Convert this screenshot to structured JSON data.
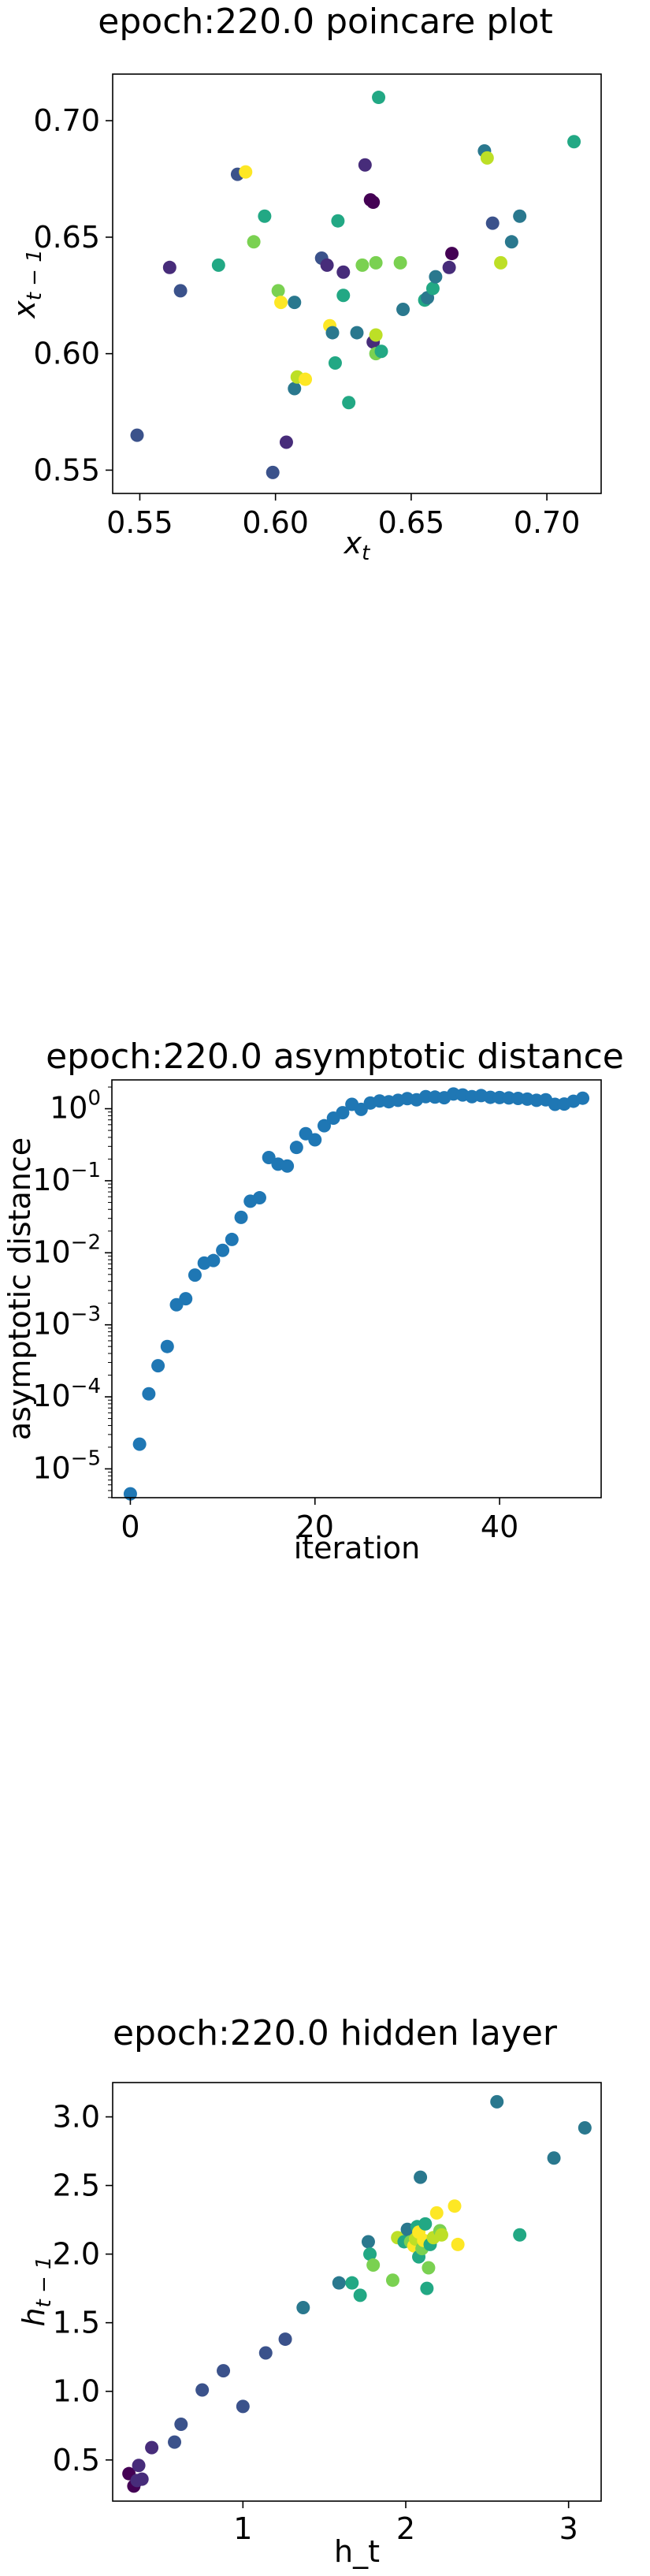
{
  "chart_data": [
    {
      "type": "scatter",
      "title": "epoch:220.0 poincare plot",
      "xlabel": "x_t",
      "ylabel": "x_{t-1}",
      "xlim": [
        0.54,
        0.72
      ],
      "ylim": [
        0.54,
        0.72
      ],
      "xticks": [
        "0.55",
        "0.60",
        "0.65",
        "0.70"
      ],
      "yticks": [
        "0.55",
        "0.60",
        "0.65",
        "0.70"
      ],
      "colormap": "viridis",
      "points": [
        {
          "x": 0.549,
          "y": 0.565,
          "c": "#3b528b"
        },
        {
          "x": 0.561,
          "y": 0.637,
          "c": "#472c7a"
        },
        {
          "x": 0.565,
          "y": 0.627,
          "c": "#3b528b"
        },
        {
          "x": 0.579,
          "y": 0.638,
          "c": "#22a884"
        },
        {
          "x": 0.586,
          "y": 0.677,
          "c": "#3b528b"
        },
        {
          "x": 0.589,
          "y": 0.678,
          "c": "#fde725"
        },
        {
          "x": 0.592,
          "y": 0.648,
          "c": "#7ad151"
        },
        {
          "x": 0.596,
          "y": 0.659,
          "c": "#22a884"
        },
        {
          "x": 0.599,
          "y": 0.549,
          "c": "#3b528b"
        },
        {
          "x": 0.601,
          "y": 0.627,
          "c": "#7ad151"
        },
        {
          "x": 0.602,
          "y": 0.622,
          "c": "#fde725"
        },
        {
          "x": 0.604,
          "y": 0.562,
          "c": "#472c7a"
        },
        {
          "x": 0.607,
          "y": 0.622,
          "c": "#2a788e"
        },
        {
          "x": 0.607,
          "y": 0.585,
          "c": "#2a788e"
        },
        {
          "x": 0.608,
          "y": 0.59,
          "c": "#bddf26"
        },
        {
          "x": 0.611,
          "y": 0.589,
          "c": "#fde725"
        },
        {
          "x": 0.617,
          "y": 0.641,
          "c": "#3b528b"
        },
        {
          "x": 0.619,
          "y": 0.638,
          "c": "#472c7a"
        },
        {
          "x": 0.62,
          "y": 0.612,
          "c": "#fde725"
        },
        {
          "x": 0.621,
          "y": 0.609,
          "c": "#2a788e"
        },
        {
          "x": 0.622,
          "y": 0.596,
          "c": "#22a884"
        },
        {
          "x": 0.623,
          "y": 0.657,
          "c": "#22a884"
        },
        {
          "x": 0.625,
          "y": 0.625,
          "c": "#22a884"
        },
        {
          "x": 0.625,
          "y": 0.635,
          "c": "#472c7a"
        },
        {
          "x": 0.627,
          "y": 0.579,
          "c": "#22a884"
        },
        {
          "x": 0.63,
          "y": 0.609,
          "c": "#2a788e"
        },
        {
          "x": 0.632,
          "y": 0.638,
          "c": "#7ad151"
        },
        {
          "x": 0.633,
          "y": 0.681,
          "c": "#472c7a"
        },
        {
          "x": 0.635,
          "y": 0.666,
          "c": "#440154"
        },
        {
          "x": 0.636,
          "y": 0.665,
          "c": "#440154"
        },
        {
          "x": 0.636,
          "y": 0.605,
          "c": "#472c7a"
        },
        {
          "x": 0.637,
          "y": 0.6,
          "c": "#7ad151"
        },
        {
          "x": 0.637,
          "y": 0.608,
          "c": "#bddf26"
        },
        {
          "x": 0.637,
          "y": 0.639,
          "c": "#7ad151"
        },
        {
          "x": 0.638,
          "y": 0.71,
          "c": "#22a884"
        },
        {
          "x": 0.639,
          "y": 0.601,
          "c": "#22a884"
        },
        {
          "x": 0.646,
          "y": 0.639,
          "c": "#7ad151"
        },
        {
          "x": 0.647,
          "y": 0.619,
          "c": "#2a788e"
        },
        {
          "x": 0.655,
          "y": 0.623,
          "c": "#22a884"
        },
        {
          "x": 0.656,
          "y": 0.624,
          "c": "#2a788e"
        },
        {
          "x": 0.658,
          "y": 0.628,
          "c": "#22a884"
        },
        {
          "x": 0.659,
          "y": 0.633,
          "c": "#2a788e"
        },
        {
          "x": 0.664,
          "y": 0.637,
          "c": "#472c7a"
        },
        {
          "x": 0.665,
          "y": 0.643,
          "c": "#440154"
        },
        {
          "x": 0.677,
          "y": 0.687,
          "c": "#2a788e"
        },
        {
          "x": 0.678,
          "y": 0.684,
          "c": "#bddf26"
        },
        {
          "x": 0.68,
          "y": 0.656,
          "c": "#3b528b"
        },
        {
          "x": 0.683,
          "y": 0.639,
          "c": "#bddf26"
        },
        {
          "x": 0.687,
          "y": 0.648,
          "c": "#2a788e"
        },
        {
          "x": 0.69,
          "y": 0.659,
          "c": "#2a788e"
        },
        {
          "x": 0.71,
          "y": 0.691,
          "c": "#22a884"
        }
      ]
    },
    {
      "type": "scatter",
      "title": "epoch:220.0 asymptotic distance",
      "xlabel": "iteration",
      "ylabel": "asymptotic distance",
      "xlim": [
        -2,
        51
      ],
      "ylim_log10": [
        -5.4,
        0.4
      ],
      "yscale": "log",
      "xticks": [
        "0",
        "20",
        "40"
      ],
      "ytick_bases": [
        "10",
        "10",
        "10",
        "10",
        "10",
        "10"
      ],
      "ytick_exps": [
        "0",
        "−1",
        "−2",
        "−3",
        "−4",
        "−5"
      ],
      "marker_color": "#1f77b4",
      "x": [
        0,
        1,
        2,
        3,
        4,
        5,
        6,
        7,
        8,
        9,
        10,
        11,
        12,
        13,
        14,
        15,
        16,
        17,
        18,
        19,
        20,
        21,
        22,
        23,
        24,
        25,
        26,
        27,
        28,
        29,
        30,
        31,
        32,
        33,
        34,
        35,
        36,
        37,
        38,
        39,
        40,
        41,
        42,
        43,
        44,
        45,
        46,
        47,
        48,
        49
      ],
      "y": [
        4.5e-06,
        2.2e-05,
        0.00011,
        0.00027,
        0.0005,
        0.0019,
        0.0023,
        0.0049,
        0.0072,
        0.0078,
        0.0108,
        0.0153,
        0.031,
        0.052,
        0.058,
        0.21,
        0.17,
        0.16,
        0.29,
        0.45,
        0.37,
        0.58,
        0.74,
        0.88,
        1.15,
        0.98,
        1.2,
        1.28,
        1.25,
        1.31,
        1.38,
        1.33,
        1.47,
        1.45,
        1.42,
        1.6,
        1.55,
        1.47,
        1.52,
        1.44,
        1.43,
        1.41,
        1.39,
        1.36,
        1.31,
        1.33,
        1.15,
        1.16,
        1.27,
        1.4
      ]
    },
    {
      "type": "scatter",
      "title": "epoch:220.0 hidden layer",
      "xlabel": "h_t",
      "ylabel": "h_{t-1}",
      "xlim": [
        0.2,
        3.2
      ],
      "ylim": [
        0.2,
        3.25
      ],
      "xticks": [
        "1",
        "2",
        "3"
      ],
      "yticks": [
        "0.5",
        "1.0",
        "1.5",
        "2.0",
        "2.5",
        "3.0"
      ],
      "colormap": "viridis",
      "points": [
        {
          "x": 0.3,
          "y": 0.4,
          "c": "#440154"
        },
        {
          "x": 0.33,
          "y": 0.31,
          "c": "#440154"
        },
        {
          "x": 0.35,
          "y": 0.35,
          "c": "#472c7a"
        },
        {
          "x": 0.36,
          "y": 0.46,
          "c": "#472c7a"
        },
        {
          "x": 0.38,
          "y": 0.36,
          "c": "#472c7a"
        },
        {
          "x": 0.44,
          "y": 0.59,
          "c": "#472c7a"
        },
        {
          "x": 0.58,
          "y": 0.63,
          "c": "#3b528b"
        },
        {
          "x": 0.62,
          "y": 0.76,
          "c": "#3b528b"
        },
        {
          "x": 0.75,
          "y": 1.01,
          "c": "#3b528b"
        },
        {
          "x": 0.88,
          "y": 1.15,
          "c": "#3b528b"
        },
        {
          "x": 1.0,
          "y": 0.89,
          "c": "#3b528b"
        },
        {
          "x": 1.14,
          "y": 1.28,
          "c": "#3b528b"
        },
        {
          "x": 1.26,
          "y": 1.38,
          "c": "#3b528b"
        },
        {
          "x": 1.37,
          "y": 1.61,
          "c": "#2a788e"
        },
        {
          "x": 1.59,
          "y": 1.79,
          "c": "#2a788e"
        },
        {
          "x": 1.67,
          "y": 1.79,
          "c": "#22a884"
        },
        {
          "x": 1.72,
          "y": 1.7,
          "c": "#22a884"
        },
        {
          "x": 1.77,
          "y": 2.09,
          "c": "#2a788e"
        },
        {
          "x": 1.78,
          "y": 2.0,
          "c": "#22a884"
        },
        {
          "x": 1.8,
          "y": 1.92,
          "c": "#7ad151"
        },
        {
          "x": 1.92,
          "y": 1.81,
          "c": "#7ad151"
        },
        {
          "x": 1.95,
          "y": 2.12,
          "c": "#bddf26"
        },
        {
          "x": 1.99,
          "y": 2.09,
          "c": "#22a884"
        },
        {
          "x": 2.01,
          "y": 2.18,
          "c": "#2a788e"
        },
        {
          "x": 2.03,
          "y": 2.09,
          "c": "#7ad151"
        },
        {
          "x": 2.05,
          "y": 2.06,
          "c": "#fde725"
        },
        {
          "x": 2.06,
          "y": 2.11,
          "c": "#bddf26"
        },
        {
          "x": 2.07,
          "y": 2.2,
          "c": "#22a884"
        },
        {
          "x": 2.08,
          "y": 1.98,
          "c": "#22a884"
        },
        {
          "x": 2.08,
          "y": 2.16,
          "c": "#fde725"
        },
        {
          "x": 2.09,
          "y": 2.56,
          "c": "#2a788e"
        },
        {
          "x": 2.1,
          "y": 2.04,
          "c": "#7ad151"
        },
        {
          "x": 2.11,
          "y": 2.1,
          "c": "#fde725"
        },
        {
          "x": 2.12,
          "y": 2.22,
          "c": "#22a884"
        },
        {
          "x": 2.13,
          "y": 1.75,
          "c": "#22a884"
        },
        {
          "x": 2.14,
          "y": 1.9,
          "c": "#7ad151"
        },
        {
          "x": 2.15,
          "y": 2.07,
          "c": "#22a884"
        },
        {
          "x": 2.17,
          "y": 2.12,
          "c": "#bddf26"
        },
        {
          "x": 2.19,
          "y": 2.3,
          "c": "#fde725"
        },
        {
          "x": 2.21,
          "y": 2.17,
          "c": "#7ad151"
        },
        {
          "x": 2.22,
          "y": 2.14,
          "c": "#bddf26"
        },
        {
          "x": 2.3,
          "y": 2.35,
          "c": "#fde725"
        },
        {
          "x": 2.32,
          "y": 2.07,
          "c": "#fde725"
        },
        {
          "x": 2.56,
          "y": 3.11,
          "c": "#2a788e"
        },
        {
          "x": 2.7,
          "y": 2.14,
          "c": "#22a884"
        },
        {
          "x": 2.91,
          "y": 2.7,
          "c": "#2a788e"
        },
        {
          "x": 3.1,
          "y": 2.92,
          "c": "#2a788e"
        }
      ]
    }
  ]
}
